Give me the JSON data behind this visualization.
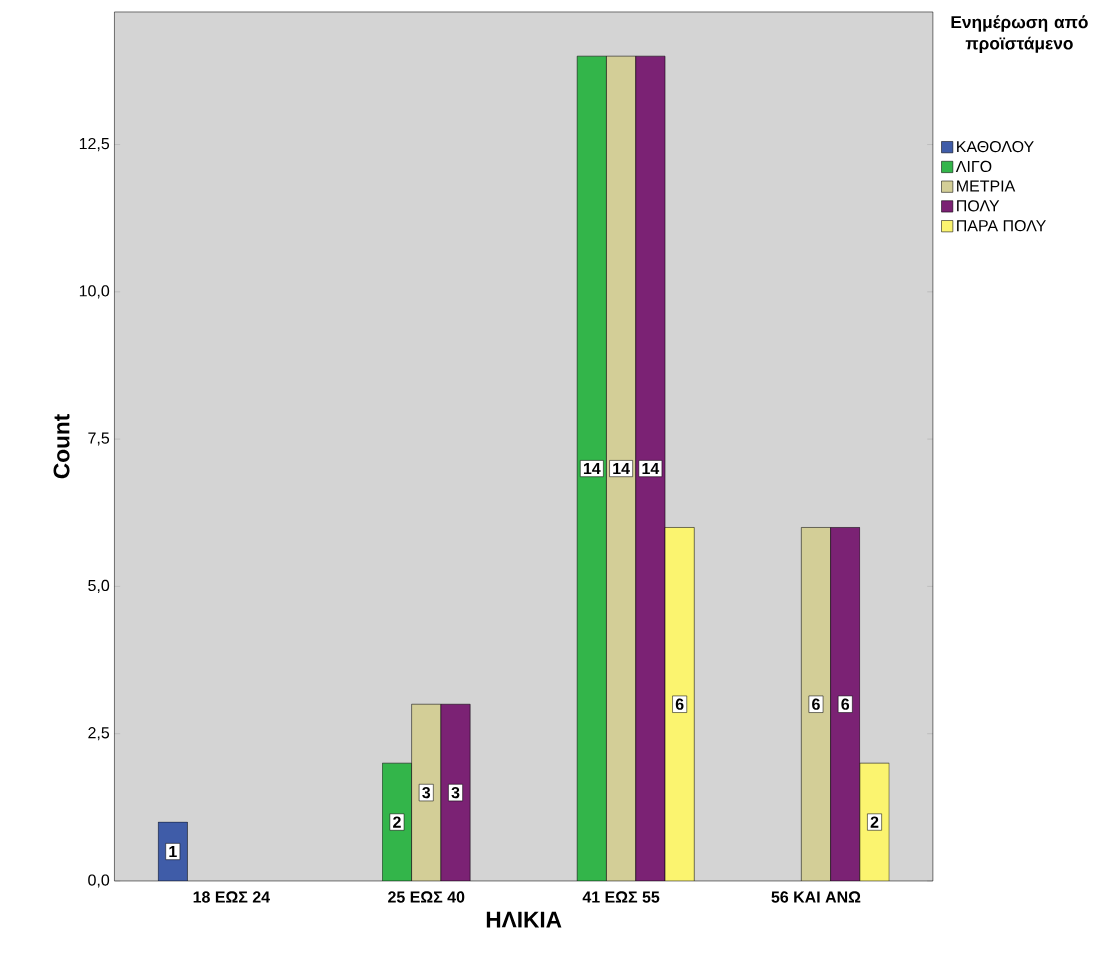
{
  "chart_data": {
    "type": "bar",
    "xlabel": "ΗΛΙΚΙΑ",
    "ylabel": "Count",
    "legend_title": "Ενημέρωση από προϊστάμενο",
    "legend": "right",
    "data_labels": true,
    "categories": [
      "18 ΕΩΣ 24",
      "25 ΕΩΣ 40",
      "41 ΕΩΣ 55",
      "56 ΚΑΙ ΑΝΩ"
    ],
    "ylim": [
      0,
      14.75
    ],
    "yticks": [
      {
        "value": 0,
        "label": "0,0"
      },
      {
        "value": 2.5,
        "label": "2,5"
      },
      {
        "value": 5,
        "label": "5,0"
      },
      {
        "value": 7.5,
        "label": "7,5"
      },
      {
        "value": 10,
        "label": "10,0"
      },
      {
        "value": 12.5,
        "label": "12,5"
      }
    ],
    "series": [
      {
        "name": "ΚΑΘΟΛΟΥ",
        "color": "#3f5ca8",
        "values": [
          1,
          null,
          null,
          null
        ]
      },
      {
        "name": "ΛΙΓΟ",
        "color": "#33b54a",
        "values": [
          null,
          2,
          14,
          null
        ]
      },
      {
        "name": "ΜΕΤΡΙΑ",
        "color": "#d3ce97",
        "values": [
          null,
          3,
          14,
          6
        ]
      },
      {
        "name": "ΠΟΛΥ",
        "color": "#7b2274",
        "values": [
          null,
          3,
          14,
          6
        ]
      },
      {
        "name": "ΠΑΡΑ ΠΟΛΥ",
        "color": "#fbf46f",
        "values": [
          null,
          null,
          6,
          2
        ]
      }
    ]
  }
}
